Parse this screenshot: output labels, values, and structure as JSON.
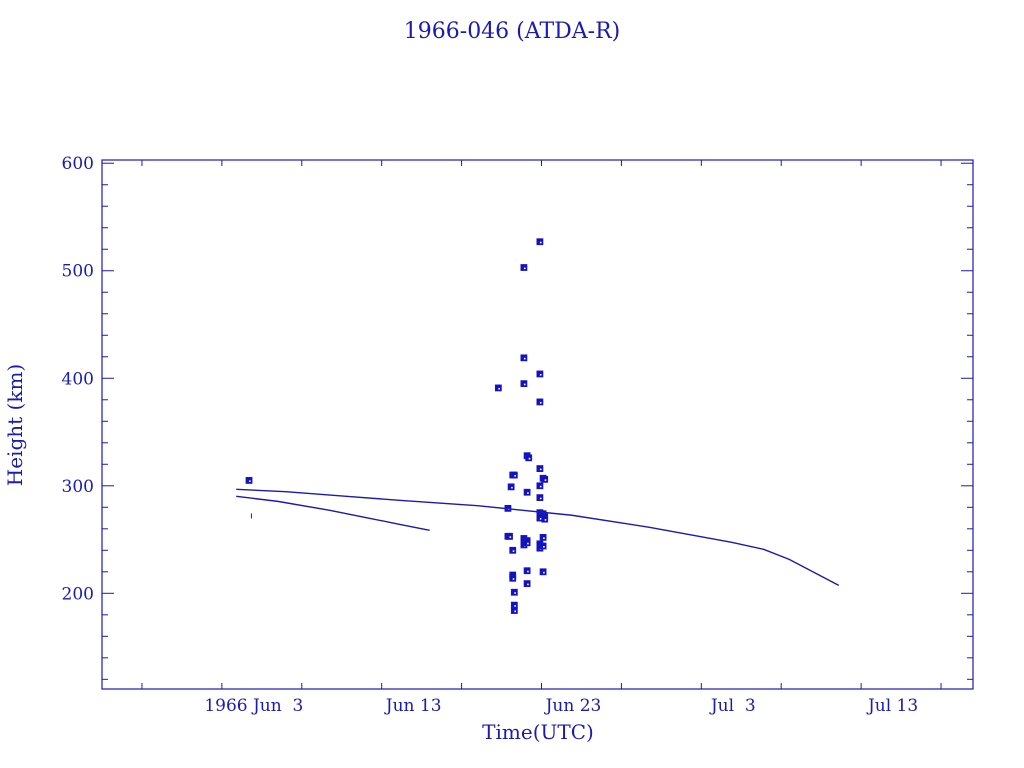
{
  "chart_data": {
    "type": "scatter",
    "title": "1966-046 (ATDA-R)",
    "xlabel": "Time(UTC)",
    "ylabel": "Height (km)",
    "x_units": "days since 1966-06-01 00:00 UTC",
    "xlim": [
      -7.5,
      47.0
    ],
    "ylim": [
      111,
      603
    ],
    "x_ticks": [
      {
        "value": 2,
        "label": "1966 Jun  3"
      },
      {
        "value": 12,
        "label": "Jun 13"
      },
      {
        "value": 22,
        "label": "Jun 23"
      },
      {
        "value": 32,
        "label": "Jul  3"
      },
      {
        "value": 42,
        "label": "Jul 13"
      }
    ],
    "x_minor_step": 5,
    "y_ticks": [
      {
        "value": 200,
        "label": "200"
      },
      {
        "value": 300,
        "label": "300"
      },
      {
        "value": 400,
        "label": "400"
      },
      {
        "value": 500,
        "label": "500"
      },
      {
        "value": 600,
        "label": "600"
      }
    ],
    "y_minor_step": 20,
    "grid": false,
    "color": "#1a1ab4",
    "series": [
      {
        "name": "observations",
        "kind": "points",
        "points": [
          [
            1.7,
            305
          ],
          [
            17.3,
            391
          ],
          [
            18.9,
            503
          ],
          [
            19.9,
            527
          ],
          [
            18.9,
            419
          ],
          [
            18.9,
            395
          ],
          [
            19.9,
            404
          ],
          [
            19.9,
            378
          ],
          [
            19.1,
            328
          ],
          [
            19.2,
            326
          ],
          [
            18.2,
            310
          ],
          [
            18.3,
            310
          ],
          [
            18.1,
            299
          ],
          [
            19.9,
            316
          ],
          [
            20.1,
            307
          ],
          [
            20.2,
            306
          ],
          [
            19.9,
            300
          ],
          [
            19.1,
            294
          ],
          [
            19.9,
            289
          ],
          [
            17.9,
            279
          ],
          [
            19.9,
            275
          ],
          [
            20.1,
            274
          ],
          [
            20.2,
            271
          ],
          [
            19.9,
            270
          ],
          [
            20.2,
            269
          ],
          [
            17.9,
            253
          ],
          [
            18.0,
            253
          ],
          [
            18.2,
            240
          ],
          [
            18.9,
            251
          ],
          [
            19.1,
            249
          ],
          [
            18.9,
            245
          ],
          [
            19.1,
            247
          ],
          [
            19.9,
            246
          ],
          [
            20.1,
            252
          ],
          [
            19.9,
            242
          ],
          [
            20.1,
            244
          ],
          [
            20.1,
            220
          ],
          [
            19.1,
            221
          ],
          [
            18.2,
            217
          ],
          [
            18.2,
            214
          ],
          [
            19.1,
            209
          ],
          [
            18.3,
            201
          ],
          [
            18.3,
            189
          ],
          [
            18.3,
            184
          ]
        ]
      },
      {
        "name": "decay-track-1",
        "kind": "line",
        "points": [
          [
            0.9,
            296.7
          ],
          [
            4.0,
            294.5
          ],
          [
            8.0,
            290.0
          ],
          [
            11.1,
            286.5
          ],
          [
            16.0,
            281.5
          ],
          [
            21.9,
            272.6
          ],
          [
            26.75,
            261.4
          ],
          [
            31.9,
            247.4
          ],
          [
            33.9,
            240.9
          ],
          [
            35.5,
            231.6
          ],
          [
            38.6,
            207.4
          ]
        ]
      },
      {
        "name": "decay-track-2",
        "kind": "line",
        "points": [
          [
            0.9,
            290.2
          ],
          [
            3.5,
            285.5
          ],
          [
            6.75,
            277.2
          ],
          [
            9.0,
            270.5
          ],
          [
            11.1,
            264.2
          ],
          [
            13.0,
            258.6
          ]
        ]
      },
      {
        "name": "single-mark",
        "kind": "tick",
        "points": [
          [
            1.85,
            272
          ]
        ]
      }
    ]
  }
}
